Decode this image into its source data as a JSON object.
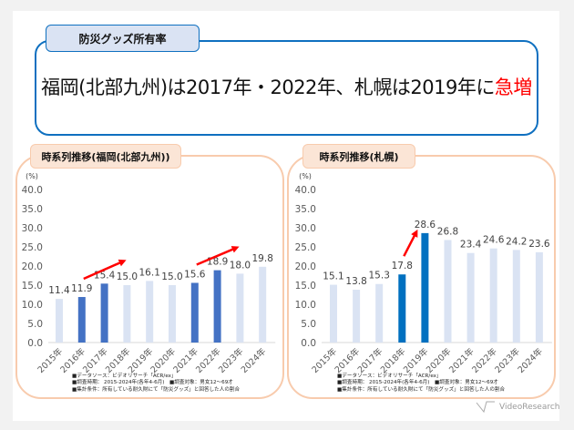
{
  "header": {
    "tab_label": "防災グッズ所有率",
    "headline_prefix": "福岡(北部九州)は2017年・2022年、札幌は2019年に",
    "headline_emphasis": "急増",
    "emphasis_color": "#ff0000"
  },
  "footnotes": [
    "■データソース：ビデオリサーチ「ACR/ex」",
    "■調査時期： 2015-2024年(各年4-6月)　■調査対象：男女12～69才",
    "■集計条件：所有している耐久財にて「防災グッズ」と回答した人の割合"
  ],
  "logo_text": "VideoResearch",
  "chart_data": [
    {
      "type": "bar",
      "title": "時系列推移(福岡(北部九州))",
      "ylabel": "(%)",
      "ylim": [
        0,
        40
      ],
      "yticks": [
        "0.0",
        "5.0",
        "10.0",
        "15.0",
        "20.0",
        "25.0",
        "30.0",
        "35.0",
        "40.0"
      ],
      "categories": [
        "2015年",
        "2016年",
        "2017年",
        "2018年",
        "2019年",
        "2020年",
        "2021年",
        "2022年",
        "2023年",
        "2024年"
      ],
      "values": [
        11.4,
        11.9,
        15.4,
        15.0,
        16.1,
        15.0,
        15.6,
        18.9,
        18.0,
        19.8
      ],
      "highlighted": [
        "2016年",
        "2017年",
        "2021年",
        "2022年"
      ],
      "arrows": [
        [
          "2016年",
          "2017年"
        ],
        [
          "2021年",
          "2022年"
        ]
      ],
      "colors": {
        "base": "#dae3f3",
        "highlight": "#4472c4",
        "arrow": "#ff0000"
      }
    },
    {
      "type": "bar",
      "title": "時系列推移(札幌)",
      "ylabel": "(%)",
      "ylim": [
        0,
        40
      ],
      "yticks": [
        "0.0",
        "5.0",
        "10.0",
        "15.0",
        "20.0",
        "25.0",
        "30.0",
        "35.0",
        "40.0"
      ],
      "categories": [
        "2015年",
        "2016年",
        "2017年",
        "2018年",
        "2019年",
        "2020年",
        "2021年",
        "2022年",
        "2023年",
        "2024年"
      ],
      "values": [
        15.1,
        13.8,
        15.3,
        17.8,
        28.6,
        26.8,
        23.4,
        24.6,
        24.2,
        23.6
      ],
      "highlighted": [
        "2018年",
        "2019年"
      ],
      "arrows": [
        [
          "2018年",
          "2019年"
        ]
      ],
      "colors": {
        "base": "#dae3f3",
        "highlight": "#0070c0",
        "arrow": "#ff0000"
      }
    }
  ]
}
